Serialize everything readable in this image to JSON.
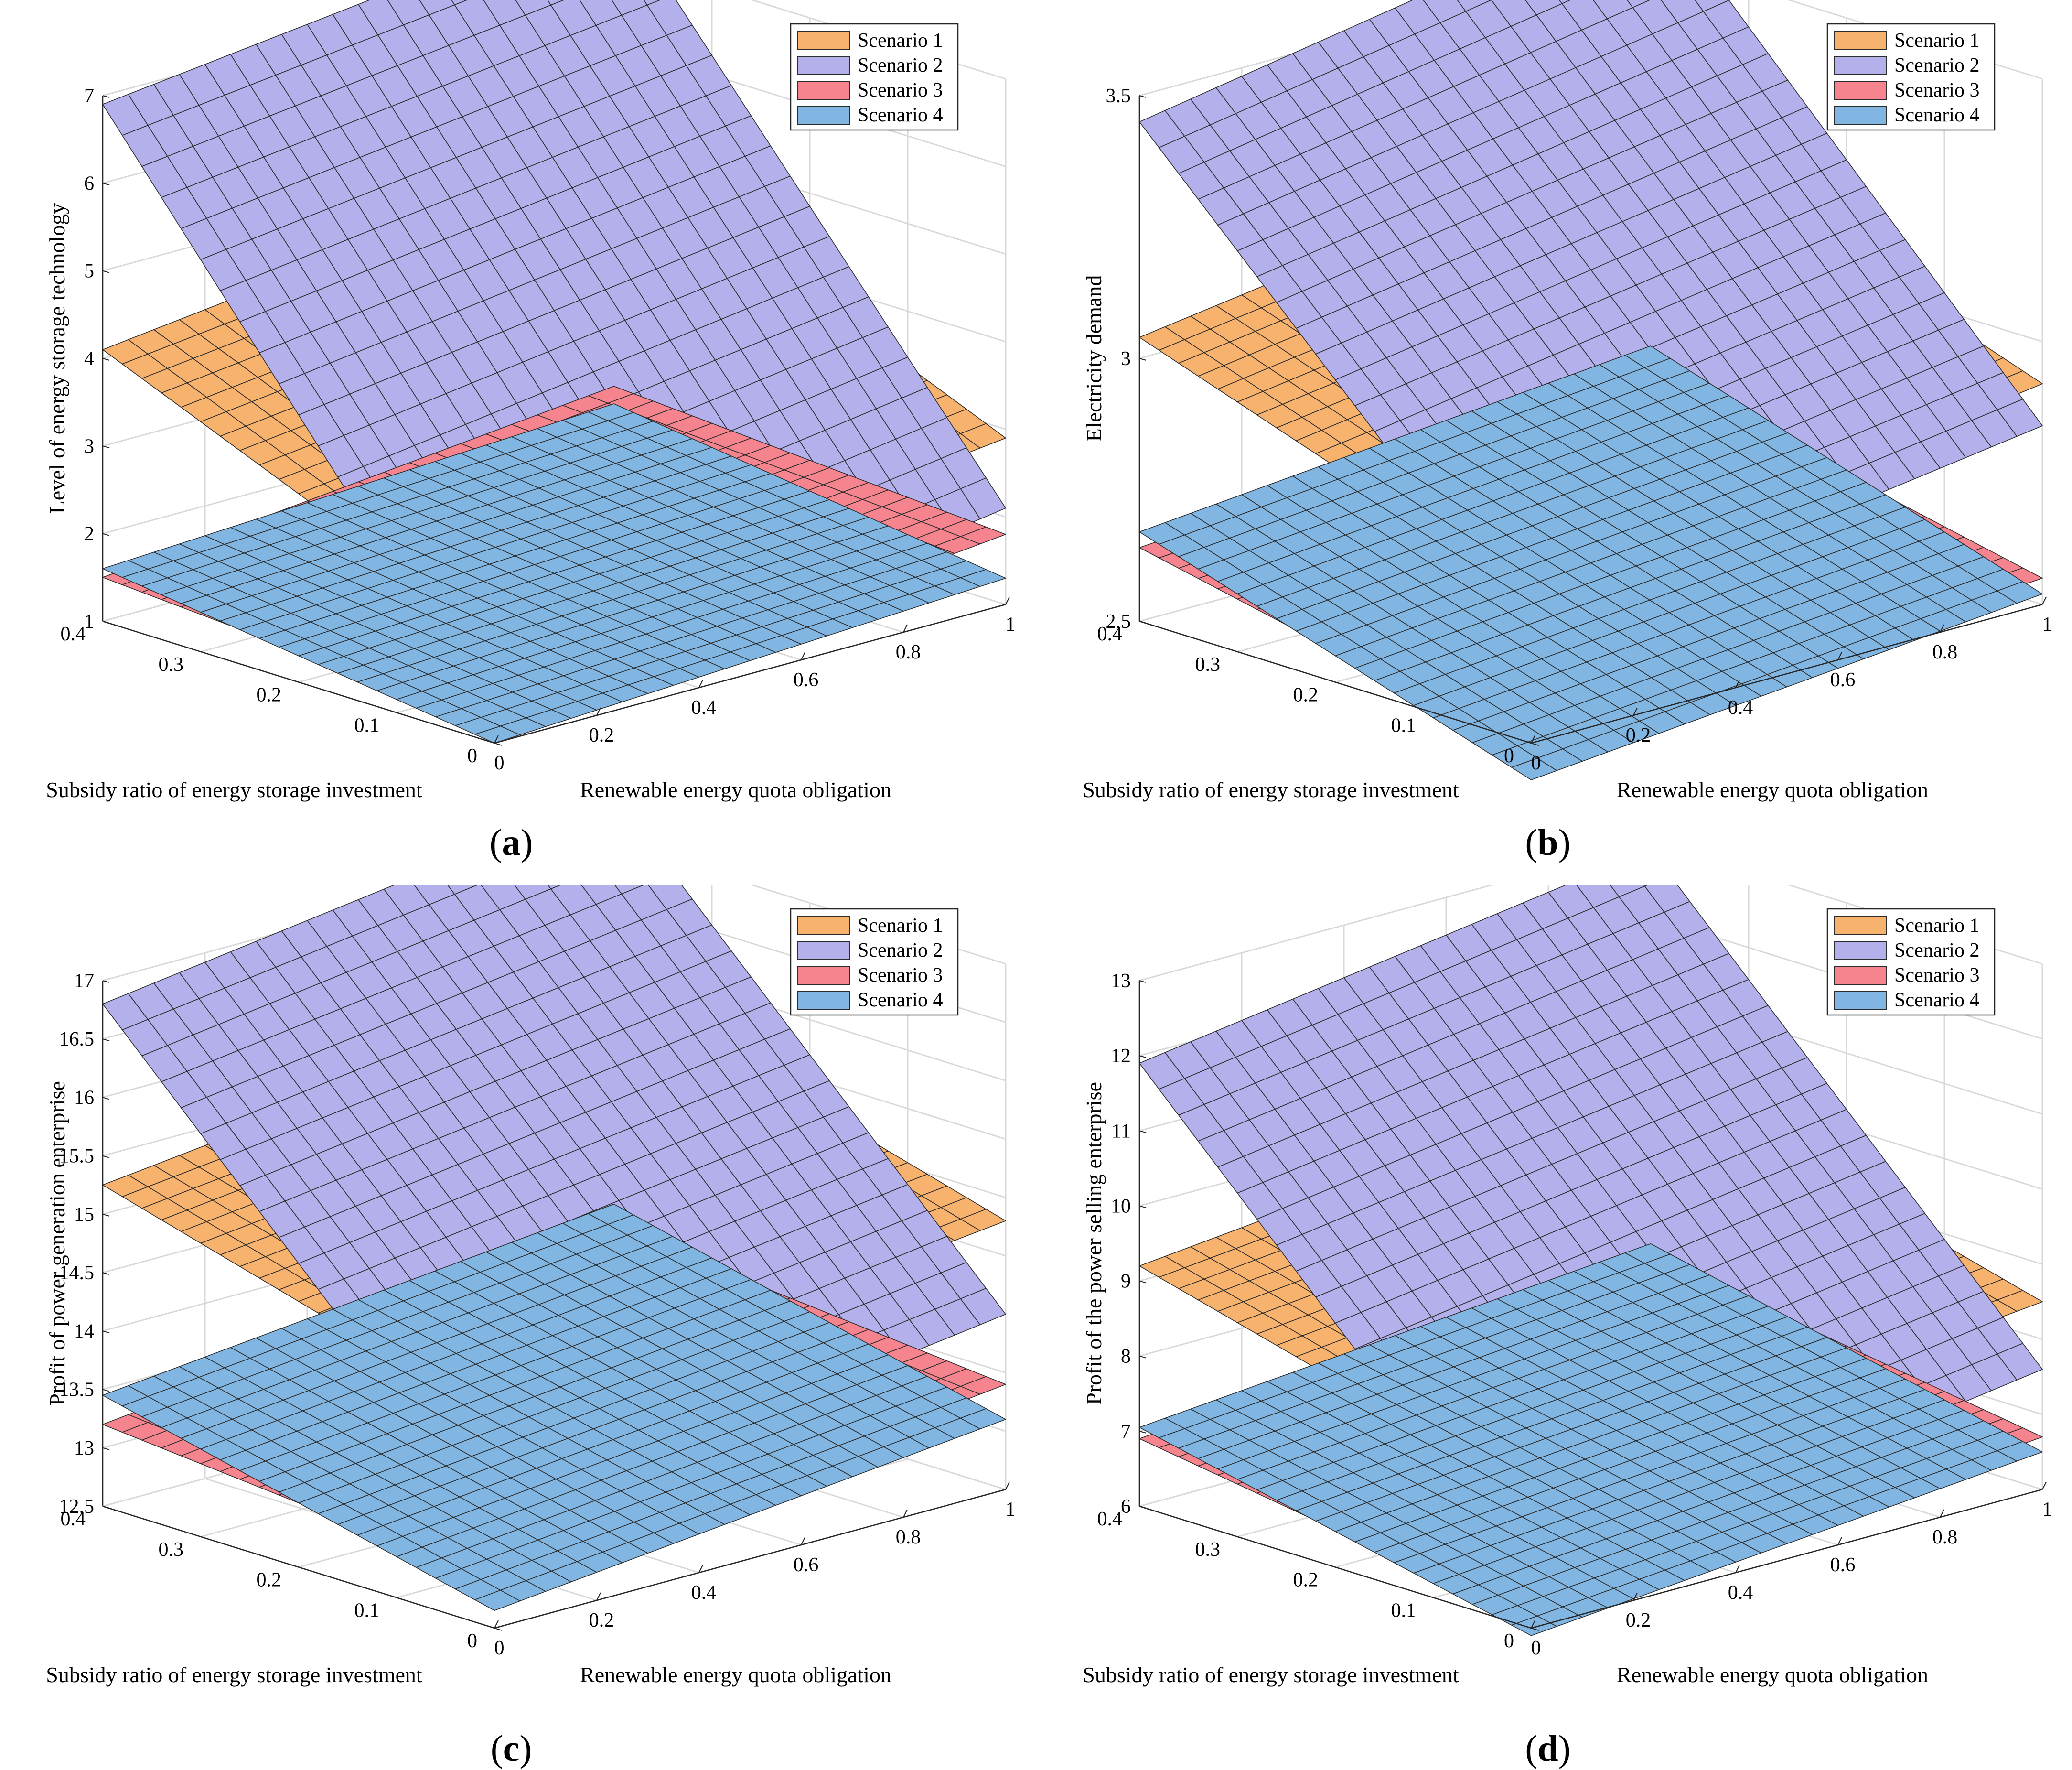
{
  "figure": {
    "colors": {
      "scenario1": "#f7b26e",
      "scenario2": "#b3b0ec",
      "scenario3": "#f5848f",
      "scenario4": "#82b6e2",
      "mesh": "#2b2b2b",
      "grid": "#d9d9d9",
      "axis": "#262626"
    }
  },
  "chart_data": [
    {
      "type": "surface",
      "panel": "a",
      "caption_prefix": "(",
      "caption_letter": "a",
      "caption_suffix": ")",
      "zlabel": "Level of energy storage technology",
      "xlabel": "Renewable energy quota obligation",
      "ylabel": "Subsidy ratio of energy storage investment",
      "xlim": [
        0,
        1
      ],
      "ylim": [
        0,
        0.4
      ],
      "zlim": [
        1,
        7
      ],
      "xticks": [
        "0",
        "0.2",
        "0.4",
        "0.6",
        "0.8",
        "1"
      ],
      "yticks": [
        "0",
        "0.1",
        "0.2",
        "0.3",
        "0.4"
      ],
      "zticks": [
        "1",
        "2",
        "3",
        "4",
        "5",
        "6",
        "7"
      ],
      "grid": true,
      "legend_position": "top-right",
      "series": [
        {
          "name": "Scenario 1",
          "corners": {
            "x0_y0": 2.2,
            "x1_y0": 2.9,
            "x0_y1": 4.1,
            "x1_y1": 4.8
          }
        },
        {
          "name": "Scenario 2",
          "corners": {
            "x0_y0": 1.2,
            "x1_y0": 2.1,
            "x0_y1": 6.9,
            "x1_y1": 7.6
          }
        },
        {
          "name": "Scenario 3",
          "corners": {
            "x0_y0": 1.2,
            "x1_y0": 1.8,
            "x0_y1": 1.5,
            "x1_y1": 2.1
          }
        },
        {
          "name": "Scenario 4",
          "corners": {
            "x0_y0": 1.0,
            "x1_y0": 1.3,
            "x0_y1": 1.6,
            "x1_y1": 1.9
          }
        }
      ]
    },
    {
      "type": "surface",
      "panel": "b",
      "caption_prefix": "(",
      "caption_letter": "b",
      "caption_suffix": ")",
      "zlabel": "Electricity demand",
      "xlabel": "Renewable energy quota obligation",
      "ylabel": "Subsidy ratio of energy storage investment",
      "xlim": [
        0,
        1
      ],
      "ylim": [
        0,
        0.4
      ],
      "zlim": [
        2.5,
        3.5
      ],
      "xticks": [
        "0",
        "0.2",
        "0.4",
        "0.6",
        "0.8",
        "1"
      ],
      "yticks": [
        "0",
        "0.1",
        "0.2",
        "0.3",
        "0.4"
      ],
      "zticks": [
        "2.5",
        "3",
        "3.5"
      ],
      "grid": true,
      "legend_position": "top-right",
      "series": [
        {
          "name": "Scenario 1",
          "corners": {
            "x0_y0": 2.78,
            "x1_y0": 2.92,
            "x0_y1": 3.04,
            "x1_y1": 3.18
          }
        },
        {
          "name": "Scenario 2",
          "corners": {
            "x0_y0": 2.7,
            "x1_y0": 2.84,
            "x0_y1": 3.45,
            "x1_y1": 3.62
          }
        },
        {
          "name": "Scenario 3",
          "corners": {
            "x0_y0": 2.48,
            "x1_y0": 2.55,
            "x0_y1": 2.64,
            "x1_y1": 2.71
          }
        },
        {
          "name": "Scenario 4",
          "corners": {
            "x0_y0": 2.43,
            "x1_y0": 2.52,
            "x0_y1": 2.67,
            "x1_y1": 2.76
          }
        }
      ]
    },
    {
      "type": "surface",
      "panel": "c",
      "caption_prefix": "(",
      "caption_letter": "c",
      "caption_suffix": ")",
      "zlabel": "Profit of power generation enterprise",
      "xlabel": "Renewable energy quota obligation",
      "ylabel": "Subsidy ratio of energy storage investment",
      "xlim": [
        0,
        1
      ],
      "ylim": [
        0,
        0.4
      ],
      "zlim": [
        12.5,
        17
      ],
      "xticks": [
        "0",
        "0.2",
        "0.4",
        "0.6",
        "0.8",
        "1"
      ],
      "yticks": [
        "0",
        "0.1",
        "0.2",
        "0.3",
        "0.4"
      ],
      "zticks": [
        "12.5",
        "13",
        "13.5",
        "14",
        "14.5",
        "15",
        "15.5",
        "16",
        "16.5",
        "17"
      ],
      "grid": true,
      "legend_position": "top-right",
      "series": [
        {
          "name": "Scenario 1",
          "corners": {
            "x0_y0": 14.3,
            "x1_y0": 14.8,
            "x0_y1": 15.25,
            "x1_y1": 15.75
          }
        },
        {
          "name": "Scenario 2",
          "corners": {
            "x0_y0": 13.4,
            "x1_y0": 14.0,
            "x0_y1": 16.8,
            "x1_y1": 17.4
          }
        },
        {
          "name": "Scenario 3",
          "corners": {
            "x0_y0": 12.9,
            "x1_y0": 13.4,
            "x0_y1": 13.2,
            "x1_y1": 13.7
          }
        },
        {
          "name": "Scenario 4",
          "corners": {
            "x0_y0": 12.65,
            "x1_y0": 13.1,
            "x0_y1": 13.45,
            "x1_y1": 13.9
          }
        }
      ]
    },
    {
      "type": "surface",
      "panel": "d",
      "caption_prefix": "(",
      "caption_letter": "d",
      "caption_suffix": ")",
      "zlabel": "Profit of the power selling enterprise",
      "xlabel": "Renewable energy quota obligation",
      "ylabel": "Subsidy ratio of energy storage investment",
      "xlim": [
        0,
        1
      ],
      "ylim": [
        0,
        0.4
      ],
      "zlim": [
        6,
        13
      ],
      "xticks": [
        "0",
        "0.2",
        "0.4",
        "0.6",
        "0.8",
        "1"
      ],
      "yticks": [
        "0",
        "0.1",
        "0.2",
        "0.3",
        "0.4"
      ],
      "zticks": [
        "6",
        "7",
        "8",
        "9",
        "10",
        "11",
        "12",
        "13"
      ],
      "grid": true,
      "legend_position": "top-right",
      "series": [
        {
          "name": "Scenario 1",
          "corners": {
            "x0_y0": 7.8,
            "x1_y0": 8.5,
            "x0_y1": 9.2,
            "x1_y1": 9.9
          }
        },
        {
          "name": "Scenario 2",
          "corners": {
            "x0_y0": 6.6,
            "x1_y0": 7.6,
            "x0_y1": 11.9,
            "x1_y1": 12.9
          }
        },
        {
          "name": "Scenario 3",
          "corners": {
            "x0_y0": 6.1,
            "x1_y0": 6.7,
            "x0_y1": 6.9,
            "x1_y1": 7.5
          }
        },
        {
          "name": "Scenario 4",
          "corners": {
            "x0_y0": 5.9,
            "x1_y0": 6.5,
            "x0_y1": 7.05,
            "x1_y1": 7.65
          }
        }
      ]
    }
  ]
}
